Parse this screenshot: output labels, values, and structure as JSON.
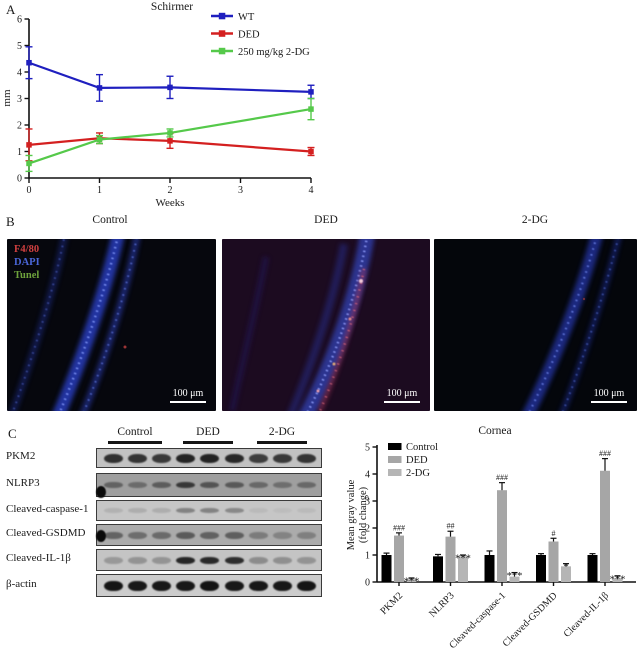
{
  "panels": {
    "a_label": "A",
    "b_label": "B",
    "c_label": "C"
  },
  "chart_data": [
    {
      "type": "line",
      "title": "Schirmer",
      "xlabel": "Weeks",
      "ylabel": "mm",
      "x": [
        0,
        1,
        2,
        4
      ],
      "xlim": [
        0,
        4
      ],
      "ylim": [
        0,
        6
      ],
      "xticks": [
        0,
        1,
        2,
        3,
        4
      ],
      "yticks": [
        0,
        1,
        2,
        3,
        4,
        5,
        6
      ],
      "legend_position": "top-right",
      "grid": false,
      "series": [
        {
          "name": "WT",
          "color": "#1f1fbf",
          "values": [
            4.35,
            3.4,
            3.42,
            3.25
          ],
          "errors": [
            0.6,
            0.5,
            0.42,
            0.25
          ]
        },
        {
          "name": "DED",
          "color": "#d42020",
          "values": [
            1.25,
            1.5,
            1.4,
            1.0
          ],
          "errors": [
            0.6,
            0.2,
            0.28,
            0.15
          ]
        },
        {
          "name": "250 mg/kg 2-DG",
          "color": "#55c94a",
          "values": [
            0.55,
            1.45,
            1.7,
            2.6
          ],
          "errors": [
            0.3,
            0.15,
            0.15,
            0.4
          ]
        }
      ]
    },
    {
      "type": "bar",
      "title": "Cornea",
      "ylabel_lines": [
        "Mean gray value",
        "(fold change)"
      ],
      "categories": [
        "PKM2",
        "NLRP3",
        "Cleaved-caspase-1",
        "Cleaved-GSDMD",
        "Cleaved-IL-1β"
      ],
      "ylim": [
        0,
        5
      ],
      "yticks": [
        0,
        1,
        2,
        3,
        4,
        5
      ],
      "legend_position": "top-left",
      "grid": false,
      "series": [
        {
          "name": "Control",
          "color": "#000000",
          "values": [
            1.0,
            0.95,
            1.0,
            1.0,
            1.0
          ],
          "errors": [
            0.07,
            0.07,
            0.15,
            0.05,
            0.05
          ],
          "sig": [
            "",
            "",
            "",
            "",
            ""
          ]
        },
        {
          "name": "DED",
          "color": "#a6a6a6",
          "values": [
            1.72,
            1.68,
            3.4,
            1.5,
            4.12
          ],
          "errors": [
            0.1,
            0.2,
            0.28,
            0.12,
            0.45
          ],
          "sig": [
            "###",
            "##",
            "###",
            "#",
            "###"
          ]
        },
        {
          "name": "2-DG",
          "color": "#b5b5b5",
          "values": [
            0.1,
            0.95,
            0.2,
            0.58,
            0.13
          ],
          "errors": [
            0.05,
            0.05,
            0.15,
            0.1,
            0.1
          ],
          "sig": [
            "***",
            "***",
            "***",
            "*",
            "***"
          ]
        }
      ]
    }
  ],
  "panelB": {
    "columns": [
      "Control",
      "DED",
      "2-DG"
    ],
    "stains": [
      {
        "label": "F4/80",
        "color": "#d04040"
      },
      {
        "label": "DAPI",
        "color": "#4a66d8"
      },
      {
        "label": "Tunel",
        "color": "#6da23c"
      }
    ],
    "scale_bar_label": "100 μm"
  },
  "panelC": {
    "group_labels": [
      "Control",
      "DED",
      "2-DG"
    ],
    "rows": [
      {
        "label": "PKM2",
        "bg": "#c2c2c2",
        "band_color": "#1c1c1c",
        "band_h": 9,
        "bands": [
          0.88,
          0.85,
          0.82,
          0.95,
          0.95,
          0.92,
          0.8,
          0.82,
          0.85
        ],
        "noise": false,
        "blob": ""
      },
      {
        "label": "NLRP3",
        "bg": "#9f9f9f",
        "band_color": "#262626",
        "band_h": 6,
        "bands": [
          0.5,
          0.42,
          0.55,
          0.85,
          0.62,
          0.58,
          0.45,
          0.4,
          0.45
        ],
        "noise": true,
        "blob": "bottom"
      },
      {
        "label": "Cleaved-caspase-1",
        "bg": "#c6c6c6",
        "band_color": "#565656",
        "band_h": 5,
        "bands": [
          0.18,
          0.22,
          0.22,
          0.6,
          0.6,
          0.55,
          0.1,
          0.08,
          0.1
        ],
        "noise": false,
        "blob": ""
      },
      {
        "label": "Cleaved-GSDMD",
        "bg": "#ababab",
        "band_color": "#303030",
        "band_h": 7,
        "bands": [
          0.58,
          0.5,
          0.52,
          0.65,
          0.6,
          0.62,
          0.38,
          0.32,
          0.35
        ],
        "noise": true,
        "blob": "middle"
      },
      {
        "label": "Cleaved-IL-1β",
        "bg": "#c4c4c4",
        "band_color": "#191919",
        "band_h": 7,
        "bands": [
          0.25,
          0.28,
          0.28,
          0.92,
          0.9,
          0.88,
          0.32,
          0.3,
          0.28
        ],
        "noise": false,
        "blob": ""
      },
      {
        "label": "β-actin",
        "bg": "#cccccc",
        "band_color": "#0f0f0f",
        "band_h": 10,
        "bands": [
          0.97,
          0.95,
          0.95,
          0.95,
          0.97,
          0.95,
          0.95,
          0.95,
          0.97
        ],
        "noise": false,
        "blob": ""
      }
    ]
  }
}
